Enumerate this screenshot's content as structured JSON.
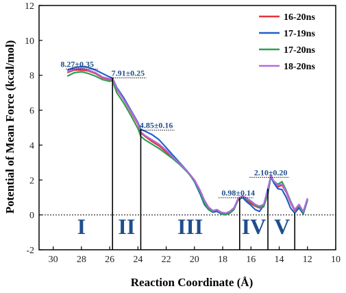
{
  "chart_data": {
    "type": "line",
    "title": "",
    "xlabel": "Reaction Coordinate (Å)",
    "ylabel": "Potential of Mean Force (kcal/mol)",
    "xlim": [
      31,
      10
    ],
    "ylim": [
      -2,
      12
    ],
    "xticks": [
      30,
      28,
      26,
      24,
      22,
      20,
      18,
      16,
      14,
      12,
      10
    ],
    "yticks": [
      -2,
      0,
      2,
      4,
      6,
      8,
      10,
      12
    ],
    "grid": false,
    "legend_position": "top-right",
    "series": [
      {
        "name": "16-20ns",
        "color": "#e8333a",
        "x": [
          29.0,
          28.5,
          28.0,
          27.5,
          27.0,
          26.5,
          26.0,
          25.8,
          25.5,
          25.0,
          24.5,
          24.0,
          23.8,
          23.5,
          23.0,
          22.5,
          22.0,
          21.5,
          21.0,
          20.5,
          20.0,
          19.6,
          19.3,
          19.0,
          18.7,
          18.4,
          18.1,
          17.8,
          17.5,
          17.2,
          16.9,
          16.6,
          16.3,
          16.0,
          15.7,
          15.4,
          15.1,
          14.8,
          14.6,
          14.4,
          14.1,
          13.8,
          13.5,
          13.2,
          12.9,
          12.6,
          12.3,
          12.0
        ],
        "y": [
          8.15,
          8.3,
          8.3,
          8.25,
          8.1,
          7.85,
          7.75,
          7.8,
          7.2,
          6.6,
          5.9,
          5.2,
          4.7,
          4.5,
          4.2,
          3.95,
          3.6,
          3.25,
          2.9,
          2.5,
          2.0,
          1.4,
          0.8,
          0.4,
          0.2,
          0.25,
          0.1,
          0.05,
          0.15,
          0.35,
          0.85,
          1.0,
          0.85,
          0.65,
          0.5,
          0.4,
          0.5,
          1.3,
          2.25,
          1.9,
          1.6,
          1.7,
          1.3,
          0.7,
          0.25,
          0.5,
          0.15,
          0.9
        ]
      },
      {
        "name": "17-19ns",
        "color": "#1f5fc8",
        "x": [
          29.0,
          28.5,
          28.0,
          27.5,
          27.0,
          26.5,
          26.0,
          25.8,
          25.5,
          25.0,
          24.5,
          24.0,
          23.8,
          23.5,
          23.0,
          22.5,
          22.0,
          21.5,
          21.0,
          20.5,
          20.0,
          19.6,
          19.3,
          19.0,
          18.7,
          18.4,
          18.1,
          17.8,
          17.5,
          17.2,
          16.9,
          16.6,
          16.3,
          16.0,
          15.7,
          15.4,
          15.1,
          14.8,
          14.6,
          14.4,
          14.1,
          13.8,
          13.5,
          13.2,
          12.9,
          12.6,
          12.3,
          12.0
        ],
        "y": [
          8.3,
          8.45,
          8.5,
          8.45,
          8.3,
          8.1,
          7.9,
          7.85,
          7.3,
          6.7,
          6.0,
          5.3,
          4.9,
          4.8,
          4.6,
          4.3,
          3.85,
          3.4,
          2.95,
          2.5,
          1.9,
          1.2,
          0.6,
          0.3,
          0.15,
          0.2,
          0.05,
          0.0,
          0.2,
          0.4,
          0.9,
          1.0,
          0.75,
          0.55,
          0.3,
          0.2,
          0.55,
          1.5,
          2.2,
          1.85,
          1.5,
          1.45,
          1.0,
          0.4,
          0.1,
          0.4,
          0.05,
          0.85
        ]
      },
      {
        "name": "17-20ns",
        "color": "#2e9e52",
        "x": [
          29.0,
          28.5,
          28.0,
          27.5,
          27.0,
          26.5,
          26.0,
          25.8,
          25.5,
          25.0,
          24.5,
          24.0,
          23.8,
          23.5,
          23.0,
          22.5,
          22.0,
          21.5,
          21.0,
          20.5,
          20.0,
          19.6,
          19.3,
          19.0,
          18.7,
          18.4,
          18.1,
          17.8,
          17.5,
          17.2,
          16.9,
          16.6,
          16.3,
          16.0,
          15.7,
          15.4,
          15.1,
          14.8,
          14.6,
          14.4,
          14.1,
          13.8,
          13.5,
          13.2,
          12.9,
          12.6,
          12.3,
          12.0
        ],
        "y": [
          7.95,
          8.15,
          8.2,
          8.1,
          7.95,
          7.75,
          7.65,
          7.7,
          7.0,
          6.4,
          5.7,
          4.95,
          4.5,
          4.3,
          4.05,
          3.8,
          3.5,
          3.2,
          2.85,
          2.45,
          1.95,
          1.3,
          0.7,
          0.3,
          0.2,
          0.3,
          0.05,
          0.0,
          0.1,
          0.3,
          0.9,
          1.05,
          0.9,
          0.75,
          0.55,
          0.45,
          0.45,
          1.2,
          2.15,
          1.95,
          1.75,
          1.9,
          1.4,
          0.8,
          0.3,
          0.55,
          0.1,
          0.95
        ]
      },
      {
        "name": "18-20ns",
        "color": "#b06be0",
        "x": [
          29.0,
          28.5,
          28.0,
          27.5,
          27.0,
          26.5,
          26.0,
          25.8,
          25.5,
          25.0,
          24.5,
          24.0,
          23.8,
          23.5,
          23.0,
          22.5,
          22.0,
          21.5,
          21.0,
          20.5,
          20.0,
          19.6,
          19.3,
          19.0,
          18.7,
          18.4,
          18.1,
          17.8,
          17.5,
          17.2,
          16.9,
          16.6,
          16.3,
          16.0,
          15.7,
          15.4,
          15.1,
          14.8,
          14.6,
          14.4,
          14.1,
          13.8,
          13.5,
          13.2,
          12.9,
          12.6,
          12.3,
          12.0
        ],
        "y": [
          8.2,
          8.35,
          8.4,
          8.3,
          8.15,
          7.9,
          7.8,
          7.85,
          7.25,
          6.6,
          5.95,
          5.25,
          4.75,
          4.55,
          4.3,
          4.05,
          3.7,
          3.3,
          2.9,
          2.5,
          2.0,
          1.4,
          0.85,
          0.45,
          0.25,
          0.3,
          0.15,
          0.1,
          0.2,
          0.4,
          0.95,
          1.1,
          0.95,
          0.8,
          0.6,
          0.5,
          0.6,
          1.4,
          2.3,
          1.95,
          1.7,
          1.75,
          1.35,
          0.75,
          0.3,
          0.6,
          0.2,
          0.95
        ]
      }
    ],
    "annotations": [
      {
        "text": "8.27±0.35",
        "x": 28.3,
        "y": 8.55,
        "line_x": [
          29.1,
          26.8
        ]
      },
      {
        "text": "7.91±0.25",
        "x": 24.7,
        "y": 8.05,
        "line_x": [
          25.9,
          23.4
        ]
      },
      {
        "text": "4.85±0.16",
        "x": 22.7,
        "y": 5.05,
        "line_x": [
          23.9,
          21.4
        ]
      },
      {
        "text": "0.98±0.14",
        "x": 16.9,
        "y": 1.18,
        "line_x": [
          18.3,
          15.8
        ]
      },
      {
        "text": "2.10±0.20",
        "x": 14.6,
        "y": 2.35,
        "line_x": [
          16.1,
          13.3
        ]
      }
    ],
    "boundaries": [
      25.8,
      23.8,
      16.8,
      14.8,
      12.9
    ],
    "zero_line": 0,
    "regions": [
      {
        "label": "I",
        "x": 28.0
      },
      {
        "label": "II",
        "x": 24.8
      },
      {
        "label": "III",
        "x": 20.3
      },
      {
        "label": "IV",
        "x": 15.8
      },
      {
        "label": "V",
        "x": 13.8
      }
    ]
  }
}
